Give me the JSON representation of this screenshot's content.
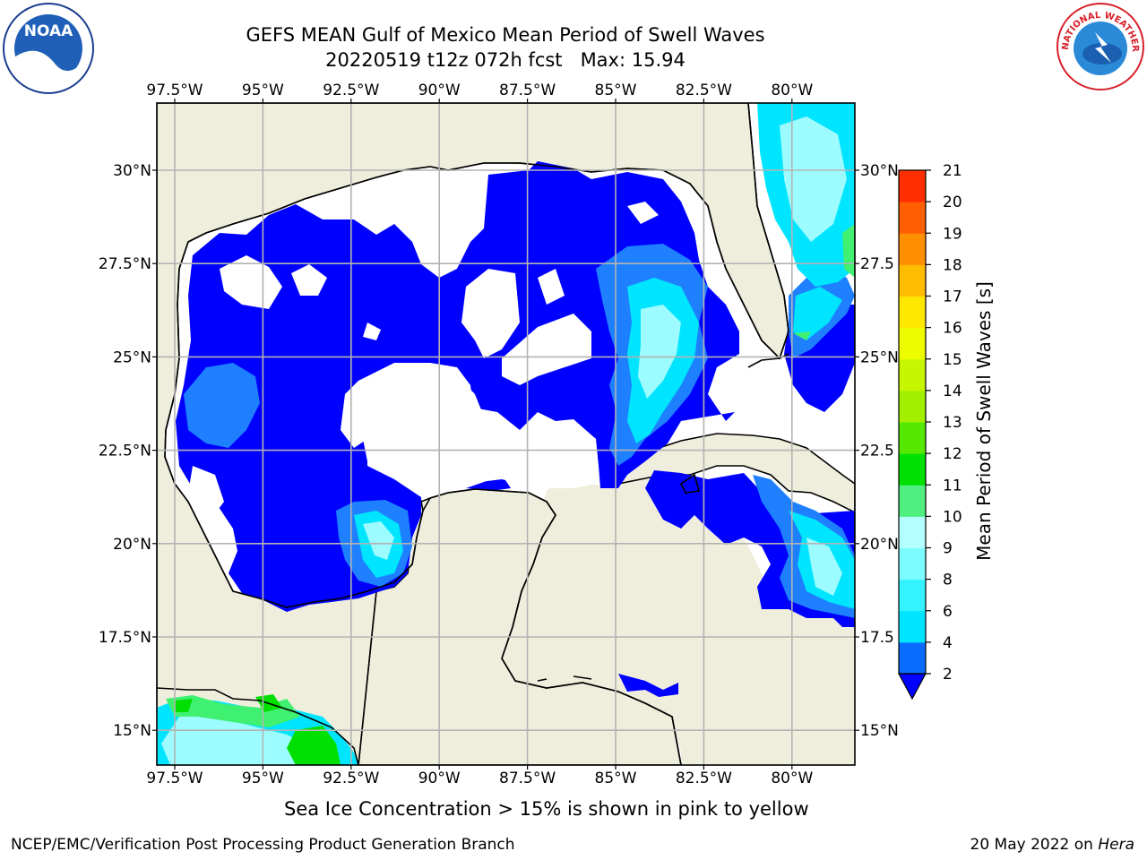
{
  "header": {
    "title_line1": "GEFS MEAN Gulf of Mexico Mean Period of Swell Waves",
    "title_line2": "20220519 t12z 072h fcst   Max: 15.94"
  },
  "map": {
    "lon_labels": [
      "97.5°W",
      "95°W",
      "92.5°W",
      "90°W",
      "87.5°W",
      "85°W",
      "82.5°W",
      "80°W"
    ],
    "lat_labels_left": [
      "30°N",
      "27.5°N",
      "25°N",
      "22.5°N",
      "20°N",
      "17.5°N",
      "15°N"
    ],
    "lat_labels_right": [
      "30°N",
      "27.5",
      "25°N",
      "22.5",
      "20°N",
      "17.5",
      "15°N"
    ],
    "land_color": "#efeedd",
    "water_white": "#ffffff",
    "grid_color": "#b3b3b3"
  },
  "colorbar": {
    "label": "Mean Period of Swell Waves [s]",
    "ticks": [
      "2",
      "4",
      "6",
      "8",
      "9",
      "10",
      "11",
      "12",
      "13",
      "14",
      "15",
      "16",
      "17",
      "18",
      "19",
      "20",
      "21"
    ],
    "colors": [
      "#0a6cff",
      "#00e5ff",
      "#33f3ff",
      "#7dfcff",
      "#b3ffff",
      "#50f080",
      "#00e000",
      "#56e800",
      "#a2f000",
      "#c8f600",
      "#eefc00",
      "#ffe800",
      "#ffbc00",
      "#ff8f00",
      "#ff5f00",
      "#ff2d00",
      "#f00000"
    ],
    "under_color": "#0000ff"
  },
  "note": "Sea Ice Concentration > 15% is shown in pink to yellow",
  "footer": {
    "left": "NCEP/EMC/Verification Post Processing Product Generation Branch",
    "right_date": "20 May 2022 on",
    "right_host": "Hera"
  },
  "logos": {
    "noaa_text": "NOAA",
    "nws_text": "NATIONAL WEATHER SERVICE"
  }
}
